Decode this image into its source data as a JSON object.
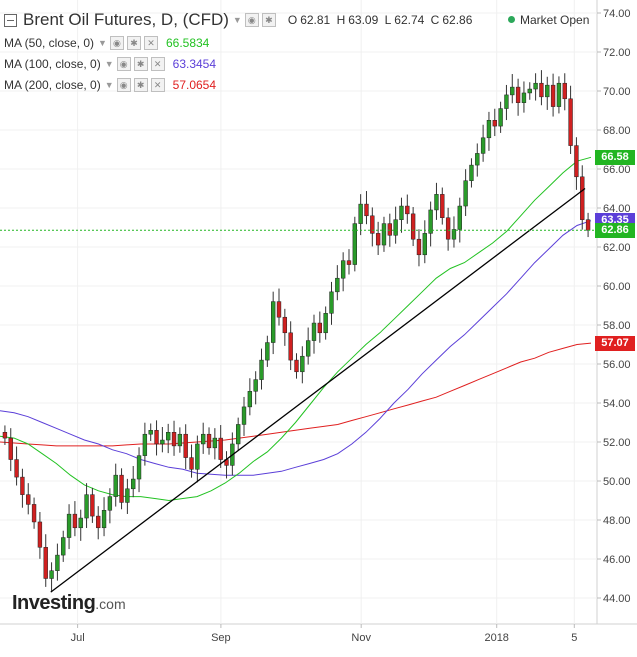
{
  "header": {
    "title": "Brent Oil Futures, D, (CFD)",
    "ohlc": {
      "o_label": "O",
      "o": "62.81",
      "h_label": "H",
      "h": "63.09",
      "l_label": "L",
      "l": "62.74",
      "c_label": "C",
      "c": "62.86"
    },
    "market_status": "Market Open"
  },
  "indicators": [
    {
      "label": "MA (50, close, 0)",
      "value": "66.5834",
      "color": "#22c222"
    },
    {
      "label": "MA (100, close, 0)",
      "value": "63.3454",
      "color": "#5b3fd8"
    },
    {
      "label": "MA (200, close, 0)",
      "value": "57.0654",
      "color": "#e02020"
    }
  ],
  "logo": {
    "text": "Investing",
    "suffix": ".com"
  },
  "price_tags": [
    {
      "value": "66.58",
      "color": "#22b522",
      "price": 66.58
    },
    {
      "value": "63.35",
      "color": "#5b3fd8",
      "price": 63.35
    },
    {
      "value": "62.86",
      "color": "#22b522",
      "price": 62.86
    },
    {
      "value": "57.07",
      "color": "#e02020",
      "price": 57.07
    }
  ],
  "chart_data": {
    "type": "candlestick",
    "ylim": [
      43,
      74.5
    ],
    "y_ticks": [
      "44.00",
      "46.00",
      "48.00",
      "50.00",
      "52.00",
      "54.00",
      "56.00",
      "58.00",
      "60.00",
      "62.00",
      "64.00",
      "66.00",
      "68.00",
      "70.00",
      "72.00",
      "74.00"
    ],
    "x_ticks": [
      {
        "label": "Jul",
        "t": 0.13
      },
      {
        "label": "Sep",
        "t": 0.37
      },
      {
        "label": "Nov",
        "t": 0.605
      },
      {
        "label": "2018",
        "t": 0.832
      },
      {
        "label": "5",
        "t": 0.962
      }
    ],
    "close_series": [
      52.2,
      51.1,
      50.2,
      49.3,
      48.8,
      47.9,
      46.6,
      45.0,
      45.4,
      46.2,
      47.1,
      48.3,
      47.6,
      48.1,
      49.3,
      48.2,
      47.6,
      48.5,
      49.2,
      50.3,
      48.9,
      49.6,
      50.1,
      51.3,
      52.4,
      52.6,
      51.9,
      52.1,
      52.5,
      51.8,
      52.4,
      51.2,
      50.6,
      51.9,
      52.4,
      51.7,
      52.2,
      51.1,
      50.8,
      51.9,
      52.9,
      53.8,
      54.6,
      55.2,
      56.2,
      57.1,
      59.2,
      58.4,
      57.6,
      56.2,
      55.6,
      56.4,
      57.2,
      58.1,
      57.6,
      58.6,
      59.7,
      60.4,
      61.3,
      61.1,
      63.2,
      64.2,
      63.6,
      62.7,
      62.1,
      63.2,
      62.6,
      63.4,
      64.1,
      63.7,
      62.4,
      61.6,
      62.7,
      63.9,
      64.7,
      63.5,
      62.4,
      62.9,
      64.1,
      65.4,
      66.2,
      66.8,
      67.6,
      68.5,
      68.2,
      69.1,
      69.8,
      70.2,
      69.4,
      69.9,
      70.1,
      70.4,
      69.7,
      70.3,
      69.2,
      70.4,
      69.6,
      67.2,
      65.6,
      63.4,
      62.86
    ],
    "ma50": [
      52.3,
      52.2,
      51.9,
      51.4,
      50.9,
      50.3,
      49.8,
      49.5,
      49.3,
      49.2,
      49.2,
      49.1,
      49.0,
      49.1,
      49.2,
      49.5,
      49.9,
      50.4,
      51.0,
      51.5,
      52.2,
      53.0,
      53.9,
      54.8,
      55.6,
      56.3,
      57.0,
      57.6,
      58.3,
      59.0,
      59.7,
      60.4,
      60.9,
      61.2,
      61.7,
      62.2,
      62.8,
      63.6,
      64.4,
      65.1,
      65.8,
      66.4,
      66.6
    ],
    "ma100": [
      53.6,
      53.5,
      53.3,
      53.0,
      52.7,
      52.4,
      52.1,
      51.9,
      51.6,
      51.4,
      51.1,
      50.9,
      50.7,
      50.6,
      50.4,
      50.35,
      50.3,
      50.3,
      50.3,
      50.4,
      50.5,
      50.7,
      50.9,
      51.1,
      51.4,
      51.9,
      52.5,
      53.2,
      54.0,
      54.7,
      55.5,
      56.2,
      56.9,
      57.5,
      58.2,
      58.9,
      59.6,
      60.4,
      61.2,
      61.9,
      62.6,
      63.1,
      63.35
    ],
    "ma200": [
      52.0,
      51.95,
      51.9,
      51.85,
      51.8,
      51.8,
      51.8,
      51.8,
      51.8,
      51.85,
      51.9,
      51.9,
      51.9,
      51.95,
      52.0,
      52.05,
      52.1,
      52.2,
      52.3,
      52.4,
      52.5,
      52.6,
      52.7,
      52.8,
      52.9,
      53.1,
      53.3,
      53.5,
      53.7,
      53.9,
      54.1,
      54.3,
      54.6,
      54.9,
      55.2,
      55.5,
      55.8,
      56.1,
      56.3,
      56.6,
      56.8,
      57.0,
      57.07
    ],
    "trendline": [
      [
        0.085,
        44.3
      ],
      [
        0.98,
        65.0
      ]
    ],
    "current_price": 62.86
  }
}
